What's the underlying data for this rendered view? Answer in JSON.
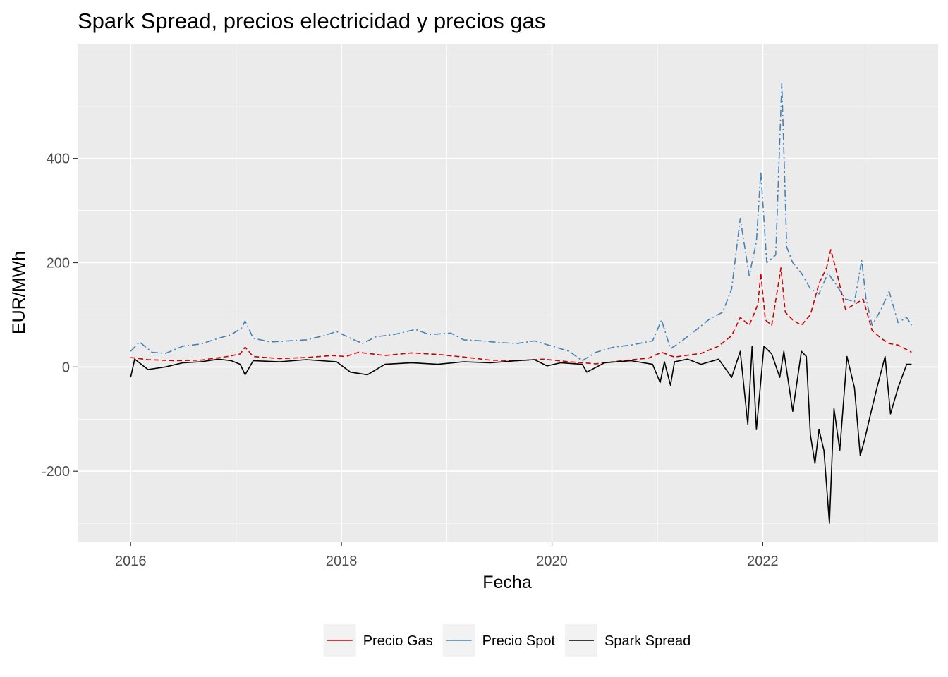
{
  "chart_data": {
    "type": "line",
    "title": "Spark Spread, precios electricidad y precios gas",
    "xlabel": "Fecha",
    "ylabel": "EUR/MWh",
    "xlim": [
      "2015-07-01",
      "2023-09-01"
    ],
    "ylim": [
      -335,
      620
    ],
    "x_ticks": [
      "2016",
      "2018",
      "2020",
      "2022"
    ],
    "y_ticks": [
      -200,
      0,
      200,
      400
    ],
    "grid": true,
    "legend_position": "bottom",
    "series": [
      {
        "name": "Precio Gas",
        "color": "#cc0000",
        "line_style": "dashed",
        "points": [
          [
            "2016-01-01",
            18
          ],
          [
            "2016-03-01",
            14
          ],
          [
            "2016-06-01",
            12
          ],
          [
            "2016-09-01",
            13
          ],
          [
            "2016-12-01",
            20
          ],
          [
            "2017-01-15",
            25
          ],
          [
            "2017-02-01",
            38
          ],
          [
            "2017-03-01",
            20
          ],
          [
            "2017-06-01",
            16
          ],
          [
            "2017-09-01",
            18
          ],
          [
            "2017-12-01",
            22
          ],
          [
            "2018-01-15",
            20
          ],
          [
            "2018-03-01",
            28
          ],
          [
            "2018-06-01",
            22
          ],
          [
            "2018-09-01",
            27
          ],
          [
            "2018-12-01",
            24
          ],
          [
            "2019-03-01",
            19
          ],
          [
            "2019-06-01",
            13
          ],
          [
            "2019-09-01",
            12
          ],
          [
            "2019-12-01",
            15
          ],
          [
            "2020-03-01",
            10
          ],
          [
            "2020-06-01",
            6
          ],
          [
            "2020-09-01",
            12
          ],
          [
            "2020-12-01",
            17
          ],
          [
            "2021-01-15",
            28
          ],
          [
            "2021-03-01",
            19
          ],
          [
            "2021-06-01",
            26
          ],
          [
            "2021-08-01",
            40
          ],
          [
            "2021-09-15",
            60
          ],
          [
            "2021-10-15",
            95
          ],
          [
            "2021-11-15",
            80
          ],
          [
            "2021-12-15",
            120
          ],
          [
            "2021-12-25",
            180
          ],
          [
            "2022-01-10",
            90
          ],
          [
            "2022-02-01",
            80
          ],
          [
            "2022-03-05",
            190
          ],
          [
            "2022-03-20",
            105
          ],
          [
            "2022-04-15",
            90
          ],
          [
            "2022-05-15",
            80
          ],
          [
            "2022-06-15",
            100
          ],
          [
            "2022-07-15",
            160
          ],
          [
            "2022-08-10",
            190
          ],
          [
            "2022-08-25",
            225
          ],
          [
            "2022-09-15",
            180
          ],
          [
            "2022-10-15",
            110
          ],
          [
            "2022-11-15",
            120
          ],
          [
            "2022-12-15",
            130
          ],
          [
            "2023-01-15",
            70
          ],
          [
            "2023-02-15",
            55
          ],
          [
            "2023-03-15",
            45
          ],
          [
            "2023-04-15",
            42
          ],
          [
            "2023-06-01",
            28
          ]
        ]
      },
      {
        "name": "Precio Spot",
        "color": "#4682b4",
        "line_style": "dashdot",
        "points": [
          [
            "2016-01-01",
            30
          ],
          [
            "2016-02-01",
            48
          ],
          [
            "2016-03-15",
            28
          ],
          [
            "2016-05-01",
            26
          ],
          [
            "2016-07-01",
            40
          ],
          [
            "2016-09-01",
            44
          ],
          [
            "2016-11-01",
            55
          ],
          [
            "2016-12-15",
            62
          ],
          [
            "2017-01-20",
            75
          ],
          [
            "2017-02-01",
            88
          ],
          [
            "2017-03-01",
            55
          ],
          [
            "2017-05-01",
            48
          ],
          [
            "2017-07-01",
            50
          ],
          [
            "2017-09-01",
            52
          ],
          [
            "2017-11-01",
            60
          ],
          [
            "2017-12-15",
            68
          ],
          [
            "2018-02-01",
            55
          ],
          [
            "2018-03-15",
            45
          ],
          [
            "2018-05-01",
            58
          ],
          [
            "2018-07-01",
            62
          ],
          [
            "2018-09-15",
            72
          ],
          [
            "2018-11-01",
            62
          ],
          [
            "2019-01-15",
            65
          ],
          [
            "2019-03-01",
            52
          ],
          [
            "2019-05-01",
            50
          ],
          [
            "2019-07-01",
            47
          ],
          [
            "2019-09-01",
            45
          ],
          [
            "2019-11-01",
            50
          ],
          [
            "2020-01-01",
            40
          ],
          [
            "2020-03-01",
            30
          ],
          [
            "2020-04-15",
            12
          ],
          [
            "2020-06-01",
            28
          ],
          [
            "2020-08-01",
            38
          ],
          [
            "2020-10-01",
            42
          ],
          [
            "2020-12-15",
            50
          ],
          [
            "2021-01-15",
            90
          ],
          [
            "2021-02-15",
            35
          ],
          [
            "2021-03-15",
            45
          ],
          [
            "2021-05-01",
            65
          ],
          [
            "2021-07-01",
            92
          ],
          [
            "2021-08-15",
            105
          ],
          [
            "2021-09-15",
            150
          ],
          [
            "2021-10-15",
            285
          ],
          [
            "2021-11-15",
            175
          ],
          [
            "2021-12-10",
            240
          ],
          [
            "2021-12-25",
            375
          ],
          [
            "2022-01-15",
            200
          ],
          [
            "2022-02-15",
            215
          ],
          [
            "2022-03-08",
            545
          ],
          [
            "2022-03-25",
            230
          ],
          [
            "2022-04-15",
            200
          ],
          [
            "2022-05-15",
            180
          ],
          [
            "2022-06-15",
            150
          ],
          [
            "2022-07-15",
            140
          ],
          [
            "2022-08-15",
            180
          ],
          [
            "2022-09-10",
            160
          ],
          [
            "2022-10-15",
            130
          ],
          [
            "2022-11-15",
            125
          ],
          [
            "2022-12-10",
            205
          ],
          [
            "2022-12-25",
            130
          ],
          [
            "2023-01-15",
            80
          ],
          [
            "2023-02-15",
            110
          ],
          [
            "2023-03-15",
            145
          ],
          [
            "2023-04-15",
            85
          ],
          [
            "2023-05-15",
            95
          ],
          [
            "2023-06-01",
            80
          ]
        ]
      },
      {
        "name": "Spark Spread",
        "color": "#000000",
        "line_style": "solid",
        "points": [
          [
            "2016-01-01",
            -20
          ],
          [
            "2016-01-15",
            15
          ],
          [
            "2016-03-01",
            -5
          ],
          [
            "2016-05-01",
            0
          ],
          [
            "2016-07-01",
            8
          ],
          [
            "2016-09-01",
            10
          ],
          [
            "2016-11-01",
            15
          ],
          [
            "2016-12-15",
            12
          ],
          [
            "2017-01-15",
            5
          ],
          [
            "2017-02-01",
            -15
          ],
          [
            "2017-03-01",
            12
          ],
          [
            "2017-06-01",
            10
          ],
          [
            "2017-09-01",
            14
          ],
          [
            "2017-12-15",
            10
          ],
          [
            "2018-02-01",
            -10
          ],
          [
            "2018-04-01",
            -15
          ],
          [
            "2018-06-01",
            5
          ],
          [
            "2018-09-01",
            8
          ],
          [
            "2018-12-01",
            5
          ],
          [
            "2019-03-01",
            10
          ],
          [
            "2019-06-01",
            8
          ],
          [
            "2019-09-01",
            12
          ],
          [
            "2019-11-01",
            14
          ],
          [
            "2019-12-15",
            2
          ],
          [
            "2020-02-01",
            8
          ],
          [
            "2020-04-15",
            5
          ],
          [
            "2020-05-01",
            -10
          ],
          [
            "2020-07-01",
            8
          ],
          [
            "2020-10-01",
            12
          ],
          [
            "2020-12-15",
            5
          ],
          [
            "2021-01-10",
            -30
          ],
          [
            "2021-01-25",
            10
          ],
          [
            "2021-02-15",
            -35
          ],
          [
            "2021-03-01",
            10
          ],
          [
            "2021-04-15",
            15
          ],
          [
            "2021-06-01",
            5
          ],
          [
            "2021-08-01",
            15
          ],
          [
            "2021-09-15",
            -20
          ],
          [
            "2021-10-15",
            30
          ],
          [
            "2021-11-10",
            -110
          ],
          [
            "2021-11-25",
            40
          ],
          [
            "2021-12-10",
            -120
          ],
          [
            "2022-01-05",
            40
          ],
          [
            "2022-02-01",
            25
          ],
          [
            "2022-03-01",
            -20
          ],
          [
            "2022-03-15",
            30
          ],
          [
            "2022-04-15",
            -85
          ],
          [
            "2022-05-15",
            30
          ],
          [
            "2022-06-01",
            20
          ],
          [
            "2022-06-15",
            -130
          ],
          [
            "2022-07-01",
            -185
          ],
          [
            "2022-07-15",
            -120
          ],
          [
            "2022-08-01",
            -160
          ],
          [
            "2022-08-20",
            -300
          ],
          [
            "2022-09-05",
            -80
          ],
          [
            "2022-09-25",
            -160
          ],
          [
            "2022-10-20",
            20
          ],
          [
            "2022-11-15",
            -40
          ],
          [
            "2022-12-05",
            -170
          ],
          [
            "2022-12-20",
            -140
          ],
          [
            "2023-01-10",
            -90
          ],
          [
            "2023-02-01",
            -40
          ],
          [
            "2023-03-01",
            20
          ],
          [
            "2023-03-20",
            -90
          ],
          [
            "2023-04-15",
            -40
          ],
          [
            "2023-05-15",
            5
          ],
          [
            "2023-06-01",
            5
          ]
        ]
      }
    ]
  }
}
